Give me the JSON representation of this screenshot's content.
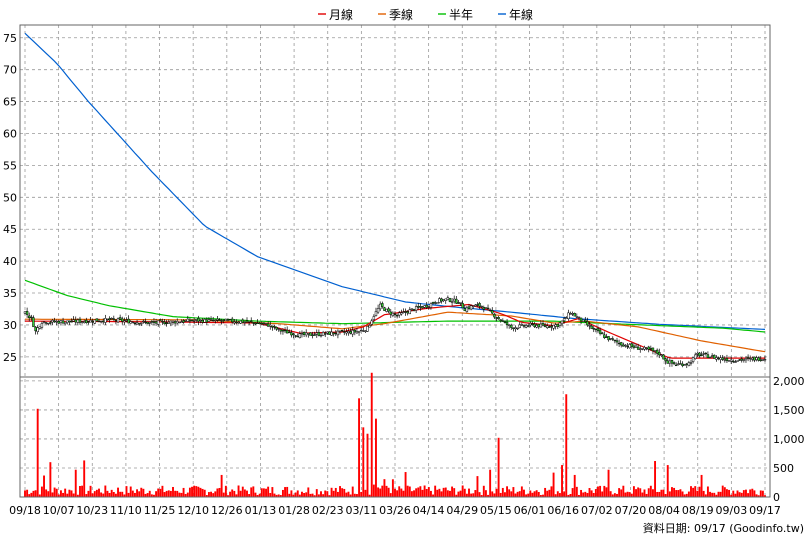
{
  "chart_data": {
    "type": "candlestick-with-volume",
    "legend": [
      {
        "name": "月線",
        "color": "#e00000"
      },
      {
        "name": "季線",
        "color": "#e06000"
      },
      {
        "name": "半年",
        "color": "#00c000"
      },
      {
        "name": "年線",
        "color": "#0060d0"
      }
    ],
    "x_tick_labels": [
      "09/18",
      "10/07",
      "10/23",
      "11/10",
      "11/25",
      "12/10",
      "12/26",
      "01/13",
      "01/28",
      "02/23",
      "03/11",
      "03/26",
      "04/14",
      "04/29",
      "05/15",
      "06/01",
      "06/16",
      "07/02",
      "07/20",
      "08/04",
      "08/19",
      "09/03",
      "09/17"
    ],
    "price_axis": {
      "ticks": [
        25,
        30,
        35,
        40,
        45,
        50,
        55,
        60,
        65,
        70,
        75
      ],
      "range": [
        22,
        77
      ],
      "grid": true
    },
    "volume_axis": {
      "ticks": [
        "0",
        "500",
        "1,000",
        "1,500",
        "2,000"
      ],
      "tick_values": [
        0,
        500,
        1000,
        1500,
        2000
      ],
      "range": [
        0,
        2050
      ]
    },
    "close_anchors": [
      [
        0,
        32
      ],
      [
        3,
        31
      ],
      [
        5,
        29
      ],
      [
        8,
        30.5
      ],
      [
        20,
        30.5
      ],
      [
        40,
        30.8
      ],
      [
        60,
        30.3
      ],
      [
        70,
        30.5
      ],
      [
        80,
        30.7
      ],
      [
        100,
        30.6
      ],
      [
        110,
        30.3
      ],
      [
        115,
        30
      ],
      [
        120,
        29.2
      ],
      [
        130,
        28.4
      ],
      [
        140,
        28.6
      ],
      [
        150,
        28.8
      ],
      [
        158,
        29
      ],
      [
        162,
        29.5
      ],
      [
        165,
        31.5
      ],
      [
        168,
        33
      ],
      [
        172,
        32
      ],
      [
        176,
        31.5
      ],
      [
        184,
        32.5
      ],
      [
        190,
        33
      ],
      [
        195,
        33.8
      ],
      [
        200,
        34
      ],
      [
        205,
        33.6
      ],
      [
        208,
        32.5
      ],
      [
        212,
        33
      ],
      [
        216,
        33
      ],
      [
        220,
        32
      ],
      [
        224,
        31
      ],
      [
        230,
        29.6
      ],
      [
        240,
        30
      ],
      [
        246,
        29.8
      ],
      [
        252,
        30
      ],
      [
        255,
        30.8
      ],
      [
        258,
        32
      ],
      [
        262,
        31
      ],
      [
        268,
        29.5
      ],
      [
        275,
        28
      ],
      [
        282,
        27
      ],
      [
        290,
        26.4
      ],
      [
        296,
        26
      ],
      [
        300,
        25.5
      ],
      [
        304,
        24.2
      ],
      [
        308,
        23.8
      ],
      [
        314,
        24
      ],
      [
        318,
        25.4
      ],
      [
        322,
        25.2
      ],
      [
        328,
        24.8
      ],
      [
        335,
        24.5
      ],
      [
        342,
        24.6
      ],
      [
        350,
        24.8
      ]
    ],
    "ma_month": [
      [
        0,
        30.6
      ],
      [
        60,
        30.5
      ],
      [
        110,
        30.3
      ],
      [
        130,
        28.7
      ],
      [
        150,
        28.9
      ],
      [
        160,
        29.7
      ],
      [
        170,
        31.6
      ],
      [
        190,
        32.6
      ],
      [
        210,
        33.2
      ],
      [
        225,
        31.8
      ],
      [
        235,
        30.4
      ],
      [
        250,
        29.9
      ],
      [
        262,
        31
      ],
      [
        275,
        29
      ],
      [
        290,
        26.9
      ],
      [
        305,
        24.8
      ],
      [
        320,
        24.8
      ],
      [
        350,
        24.8
      ]
    ],
    "ma_quarter": [
      [
        0,
        30.9
      ],
      [
        80,
        30.8
      ],
      [
        120,
        30.2
      ],
      [
        150,
        29.4
      ],
      [
        170,
        30.2
      ],
      [
        200,
        32
      ],
      [
        230,
        31.4
      ],
      [
        250,
        30.3
      ],
      [
        265,
        30.6
      ],
      [
        290,
        29.7
      ],
      [
        320,
        27.5
      ],
      [
        350,
        25.8
      ]
    ],
    "ma_halfyear": [
      [
        0,
        37
      ],
      [
        20,
        34.6
      ],
      [
        40,
        33
      ],
      [
        70,
        31.3
      ],
      [
        110,
        30.6
      ],
      [
        150,
        30.2
      ],
      [
        200,
        30.6
      ],
      [
        250,
        30.6
      ],
      [
        270,
        30.3
      ],
      [
        300,
        29.9
      ],
      [
        330,
        29.5
      ],
      [
        350,
        28.9
      ]
    ],
    "ma_year": [
      [
        0,
        75.7
      ],
      [
        15,
        71
      ],
      [
        30,
        65
      ],
      [
        60,
        54
      ],
      [
        85,
        45.5
      ],
      [
        110,
        40.7
      ],
      [
        150,
        36
      ],
      [
        180,
        33.6
      ],
      [
        200,
        32.9
      ],
      [
        230,
        32
      ],
      [
        260,
        31
      ],
      [
        300,
        30.1
      ],
      [
        350,
        29.3
      ]
    ],
    "volume_spikes": [
      [
        6,
        1520
      ],
      [
        9,
        370
      ],
      [
        12,
        600
      ],
      [
        24,
        470
      ],
      [
        28,
        630
      ],
      [
        93,
        380
      ],
      [
        158,
        1700
      ],
      [
        160,
        1200
      ],
      [
        162,
        1090
      ],
      [
        164,
        2140
      ],
      [
        166,
        1350
      ],
      [
        180,
        430
      ],
      [
        214,
        360
      ],
      [
        220,
        470
      ],
      [
        224,
        1020
      ],
      [
        250,
        420
      ],
      [
        254,
        550
      ],
      [
        256,
        1770
      ],
      [
        260,
        380
      ],
      [
        276,
        470
      ],
      [
        298,
        620
      ],
      [
        304,
        550
      ],
      [
        320,
        380
      ]
    ],
    "source_label": "資料日期: 09/17  (Goodinfo.tw)"
  }
}
